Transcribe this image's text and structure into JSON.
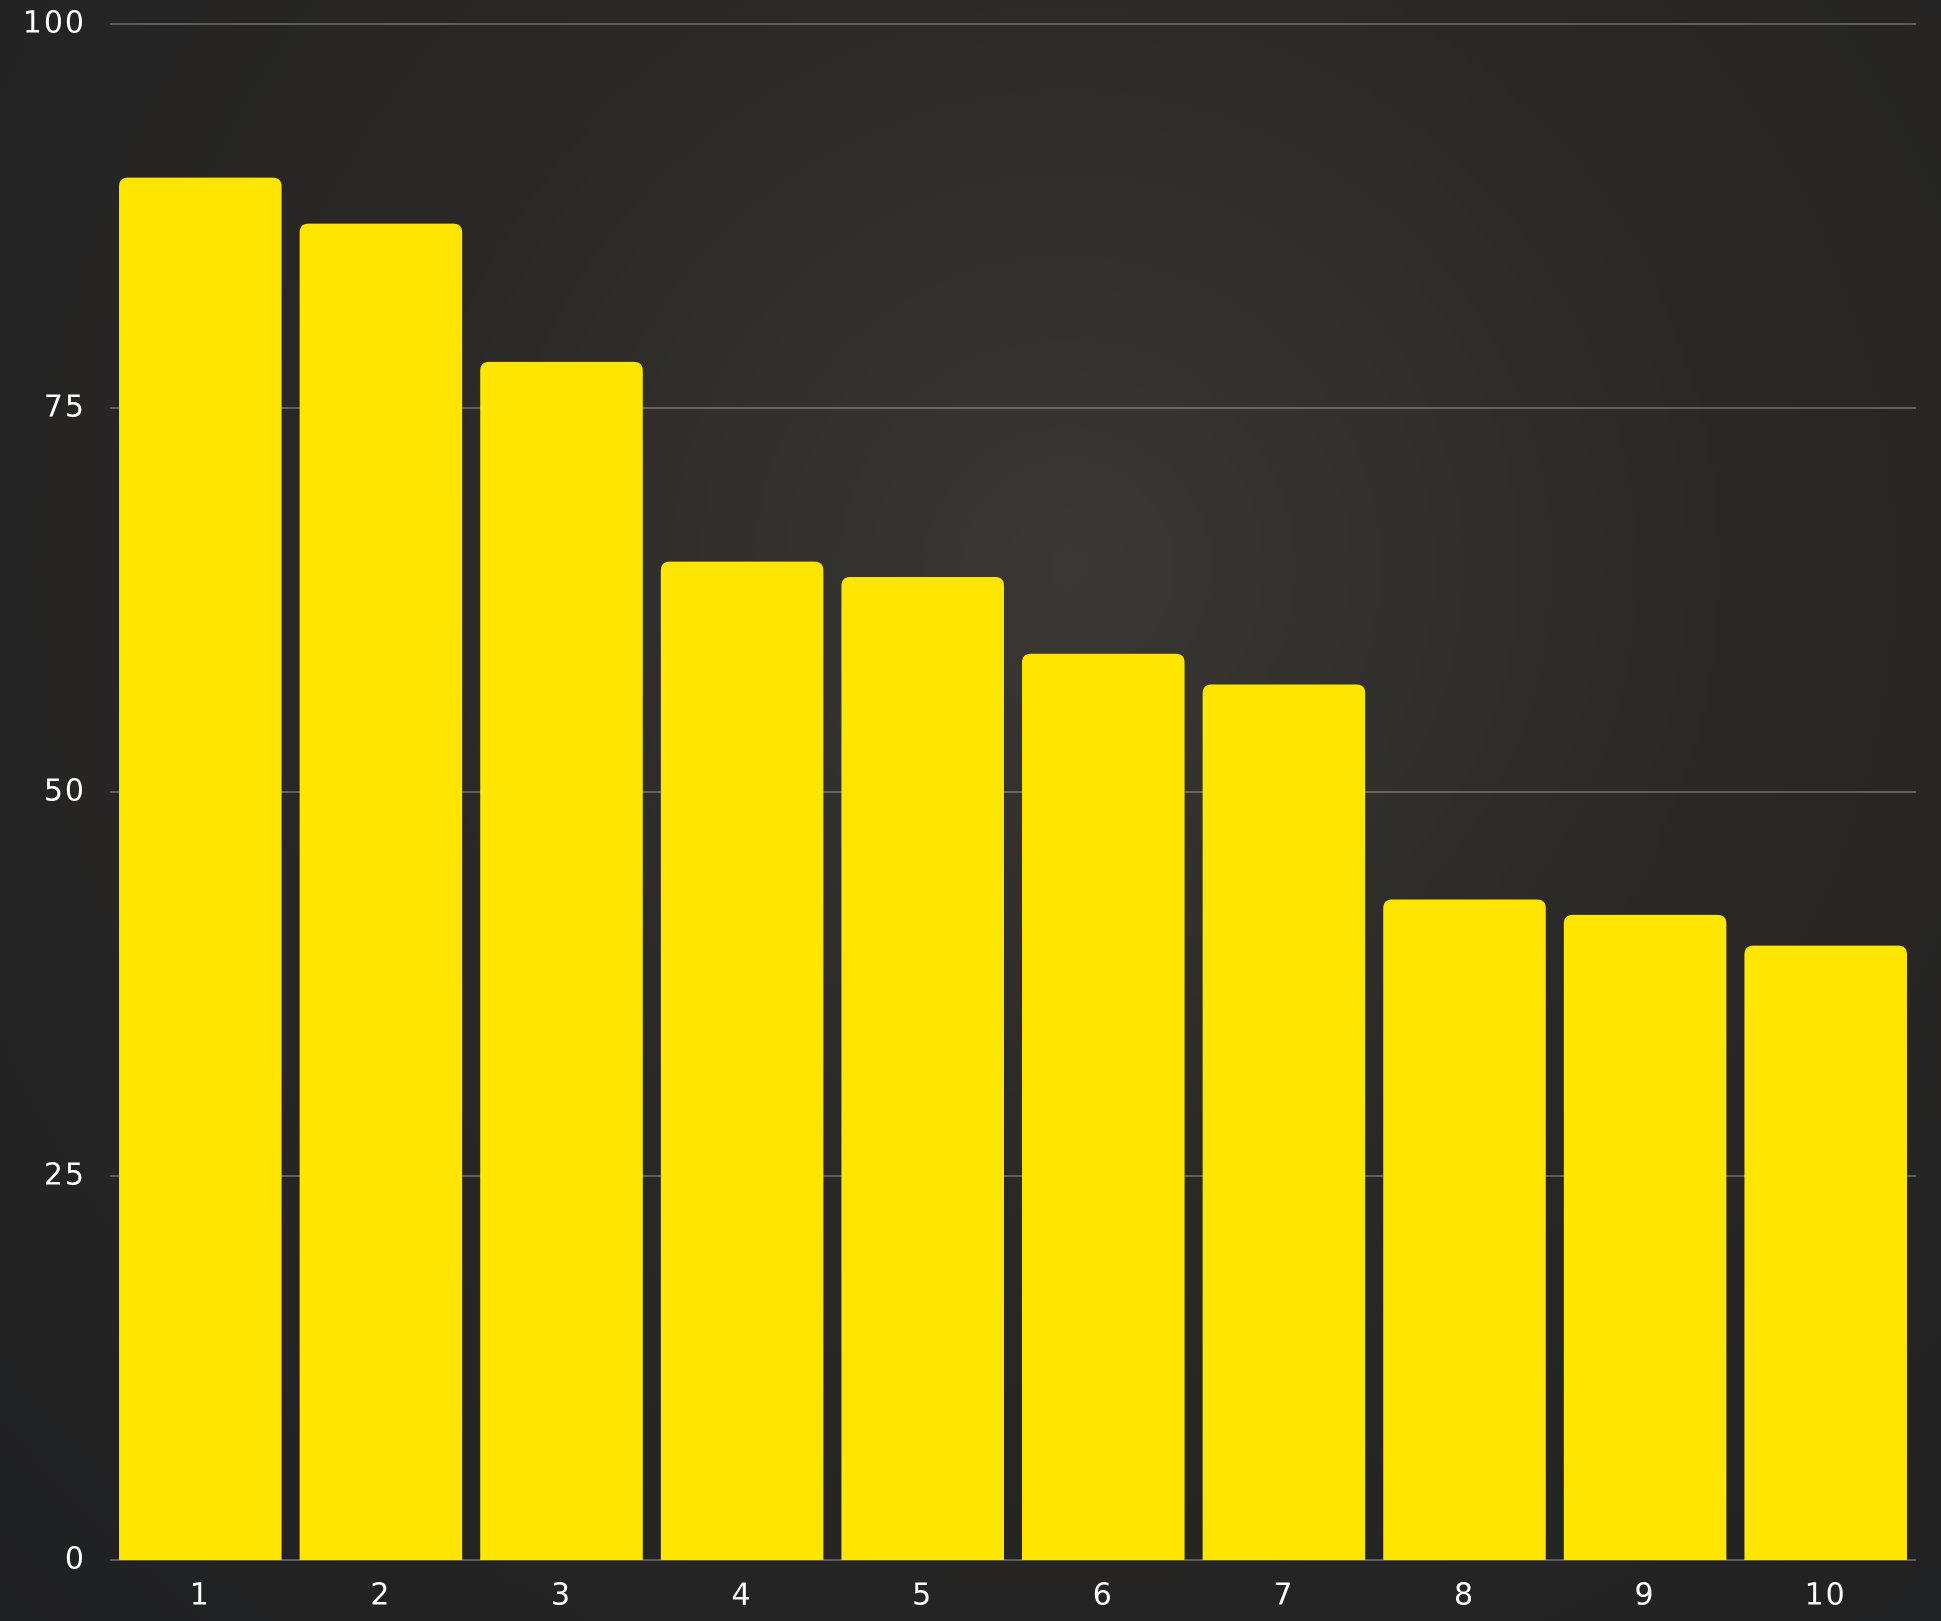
{
  "chart_data": {
    "type": "bar",
    "categories": [
      "1",
      "2",
      "3",
      "4",
      "5",
      "6",
      "7",
      "8",
      "9",
      "10"
    ],
    "values": [
      90,
      87,
      78,
      65,
      64,
      59,
      57,
      43,
      42,
      40
    ],
    "color": "#ffe600",
    "ylim": [
      0,
      100
    ],
    "yticks": [
      0,
      25,
      50,
      75,
      100
    ],
    "grid": true
  }
}
